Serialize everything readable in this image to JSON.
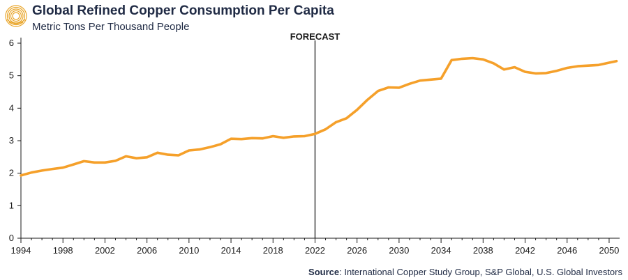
{
  "header": {
    "title": "Global Refined Copper Consumption Per Capita",
    "subtitle": "Metric Tons Per Thousand People",
    "logo_icon": "global-investors-logo-icon",
    "logo_color": "#e9a62b"
  },
  "annotation": {
    "forecast_label": "FORECAST",
    "forecast_x": 2022
  },
  "source": {
    "label": "Source",
    "text": ": International Copper Study Group, S&P Global, U.S. Global Investors"
  },
  "colors": {
    "line": "#f5a02a",
    "axis": "#1a1a1a",
    "text": "#1f2a44"
  },
  "chart_data": {
    "type": "line",
    "title": "Global Refined Copper Consumption Per Capita",
    "ylabel": "Metric Tons Per Thousand People",
    "xlabel": "",
    "xlim": [
      1994,
      2051
    ],
    "ylim": [
      0,
      6
    ],
    "x_ticks": [
      1994,
      1998,
      2002,
      2006,
      2010,
      2014,
      2018,
      2022,
      2026,
      2030,
      2034,
      2038,
      2042,
      2046,
      2050
    ],
    "y_ticks": [
      0,
      1,
      2,
      3,
      4,
      5,
      6
    ],
    "grid": false,
    "legend": "none",
    "series": [
      {
        "x": [
          1994,
          1995,
          1996,
          1997,
          1998,
          1999,
          2000,
          2001,
          2002,
          2003,
          2004,
          2005,
          2006,
          2007,
          2008,
          2009,
          2010,
          2011,
          2012,
          2013,
          2014,
          2015,
          2016,
          2017,
          2018,
          2019,
          2020,
          2021,
          2022,
          2023,
          2024,
          2025,
          2026,
          2027,
          2028,
          2029,
          2030,
          2031,
          2032,
          2033,
          2034,
          2035,
          2036,
          2037,
          2038,
          2039,
          2040,
          2041,
          2042,
          2043,
          2044,
          2045,
          2046,
          2047,
          2048,
          2049,
          2050,
          2050.7
        ],
        "values": [
          1.93,
          2.02,
          2.08,
          2.13,
          2.17,
          2.27,
          2.37,
          2.33,
          2.33,
          2.38,
          2.52,
          2.46,
          2.49,
          2.63,
          2.57,
          2.55,
          2.7,
          2.73,
          2.8,
          2.89,
          3.06,
          3.05,
          3.08,
          3.07,
          3.14,
          3.09,
          3.13,
          3.14,
          3.21,
          3.35,
          3.57,
          3.69,
          3.95,
          4.26,
          4.53,
          4.64,
          4.63,
          4.75,
          4.85,
          4.88,
          4.91,
          5.48,
          5.52,
          5.54,
          5.5,
          5.38,
          5.19,
          5.26,
          5.12,
          5.07,
          5.08,
          5.15,
          5.24,
          5.29,
          5.31,
          5.33,
          5.4,
          5.45
        ]
      }
    ]
  }
}
